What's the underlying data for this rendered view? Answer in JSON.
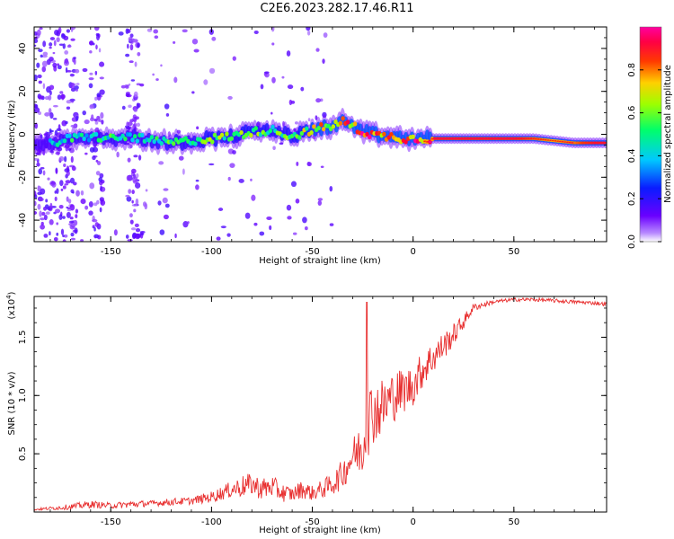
{
  "title": "C2E6.2023.282.17.46.R11",
  "chart_data": [
    {
      "type": "heatmap",
      "xlabel": "Height of straight line (km)",
      "ylabel": "Frequency (Hz)",
      "xlim": [
        -188,
        96
      ],
      "ylim": [
        -50,
        50
      ],
      "xticks": [
        -150,
        -100,
        -50,
        0,
        50
      ],
      "xtick_labels": [
        "-150",
        "-100",
        "-50",
        "0",
        "50"
      ],
      "yticks": [
        -40,
        -20,
        0,
        20,
        40
      ],
      "ytick_labels": [
        "-40",
        "-20",
        "0",
        "20",
        "40"
      ],
      "colorbar": {
        "label": "Normalized spectral amplitude",
        "range": [
          0,
          1
        ],
        "ticks": [
          0.0,
          0.2,
          0.4,
          0.6,
          0.8
        ],
        "tick_labels": [
          "0.0",
          "0.2",
          "0.4",
          "0.6",
          "0.8"
        ],
        "colormap": "rainbow (white-purple-blue-cyan-green-yellow-orange-red-magenta)"
      },
      "ridge": {
        "x": [
          -178,
          -170,
          -160,
          -150,
          -140,
          -130,
          -120,
          -110,
          -100,
          -90,
          -80,
          -70,
          -60,
          -50,
          -40,
          -35,
          -30,
          -25,
          -20,
          -15,
          -10,
          -5,
          0,
          10,
          20,
          30,
          40,
          50,
          60,
          70,
          80,
          90
        ],
        "frequency": [
          -4,
          -2,
          -1,
          -2,
          -1,
          -3,
          -4,
          -3,
          -2,
          -1,
          1,
          2,
          -1,
          2,
          4,
          6,
          4,
          1,
          0,
          -1,
          -1,
          -2,
          -2,
          -2,
          -2,
          -2,
          -2,
          -2,
          -2,
          -3,
          -4,
          -4
        ],
        "amplitude": [
          0.4,
          0.5,
          0.45,
          0.5,
          0.45,
          0.5,
          0.55,
          0.5,
          0.6,
          0.55,
          0.6,
          0.55,
          0.55,
          0.7,
          0.75,
          0.8,
          0.85,
          0.9,
          0.9,
          0.85,
          0.8,
          0.8,
          0.85,
          0.85,
          0.85,
          0.85,
          0.85,
          0.85,
          0.8,
          0.75,
          0.8,
          0.9
        ]
      }
    },
    {
      "type": "line",
      "xlabel": "Height of straight line (km)",
      "ylabel": "SNR (10 * v/v)",
      "y_multiplier": "(x10",
      "y_multiplier_exp": "4",
      "y_multiplier_close": ")",
      "xlim": [
        -188,
        96
      ],
      "ylim": [
        0,
        1.85
      ],
      "xticks": [
        -150,
        -100,
        -50,
        0,
        50
      ],
      "xtick_labels": [
        "-150",
        "-100",
        "-50",
        "0",
        "50"
      ],
      "yticks": [
        0.5,
        1.0,
        1.5
      ],
      "ytick_labels": [
        "0.5",
        "1.0",
        "1.5"
      ],
      "color": "#e83030",
      "series": [
        {
          "x": [
            -188,
            -170,
            -160,
            -150,
            -140,
            -130,
            -120,
            -110,
            -100,
            -90,
            -85,
            -80,
            -75,
            -70,
            -65,
            -60,
            -55,
            -50,
            -45,
            -40,
            -35,
            -30,
            -25,
            -22,
            -20,
            -15,
            -10,
            -5,
            0,
            5,
            10,
            15,
            20,
            25,
            30,
            40,
            50,
            60,
            70,
            80,
            90,
            96
          ],
          "y": [
            0.02,
            0.04,
            0.06,
            0.05,
            0.06,
            0.07,
            0.08,
            0.09,
            0.12,
            0.18,
            0.2,
            0.22,
            0.18,
            0.2,
            0.15,
            0.14,
            0.18,
            0.15,
            0.18,
            0.22,
            0.3,
            0.45,
            0.5,
            0.75,
            0.8,
            0.85,
            0.95,
            1.0,
            1.05,
            1.2,
            1.3,
            1.4,
            1.5,
            1.62,
            1.75,
            1.8,
            1.82,
            1.82,
            1.81,
            1.8,
            1.79,
            1.78
          ],
          "noise": [
            0.01,
            0.03,
            0.04,
            0.03,
            0.04,
            0.03,
            0.04,
            0.04,
            0.06,
            0.09,
            0.12,
            0.12,
            0.12,
            0.12,
            0.1,
            0.08,
            0.1,
            0.08,
            0.1,
            0.12,
            0.16,
            0.2,
            0.3,
            0.4,
            0.35,
            0.32,
            0.28,
            0.25,
            0.22,
            0.2,
            0.18,
            0.15,
            0.12,
            0.08,
            0.04,
            0.02,
            0.02,
            0.02,
            0.02,
            0.02,
            0.02,
            0.02
          ]
        }
      ],
      "peak": {
        "x": -23,
        "y": 1.8
      }
    }
  ]
}
